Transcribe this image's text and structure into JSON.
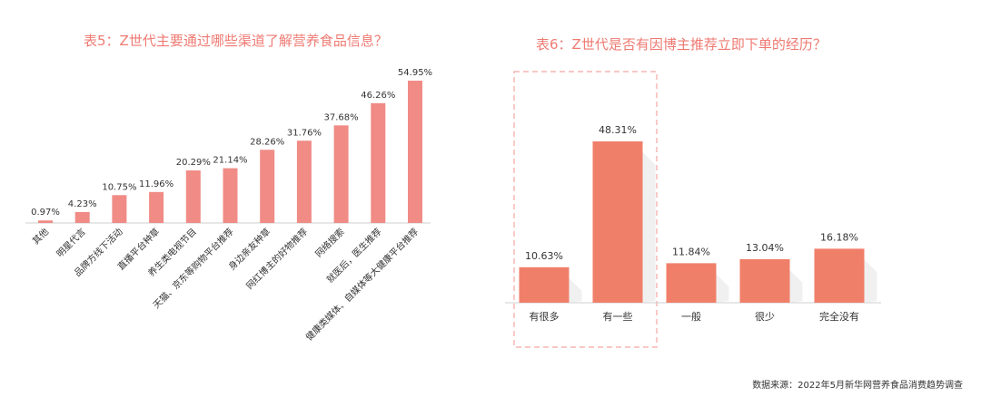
{
  "chart_data": [
    {
      "type": "bar",
      "title": "表5：Z世代主要通过哪些渠道了解营养食品信息？",
      "categories": [
        "其他",
        "明星代言",
        "品牌方线下活动",
        "直播平台种草",
        "养生类电视节目",
        "天猫、京东等购物平台推荐",
        "身边亲友种草",
        "网红博主的好物推荐",
        "网络搜索",
        "就医后，医生推荐",
        "健康类媒体、自媒体等大健康平台推荐"
      ],
      "values": [
        0.97,
        4.23,
        10.75,
        11.96,
        20.29,
        21.14,
        28.26,
        31.76,
        37.68,
        46.26,
        54.95
      ],
      "value_labels": [
        "0.97%",
        "4.23%",
        "10.75%",
        "11.96%",
        "20.29%",
        "21.14%",
        "28.26%",
        "31.76%",
        "37.68%",
        "46.26%",
        "54.95%"
      ],
      "ylim": [
        0,
        60
      ],
      "grid": false,
      "color": "#f08b86"
    },
    {
      "type": "bar",
      "title": "表6：Z世代是否有因博主推荐立即下单的经历？",
      "categories": [
        "有很多",
        "有一些",
        "一般",
        "很少",
        "完全没有"
      ],
      "values": [
        10.63,
        48.31,
        11.84,
        13.04,
        16.18
      ],
      "value_labels": [
        "10.63%",
        "48.31%",
        "11.84%",
        "13.04%",
        "16.18%"
      ],
      "ylim": [
        0,
        55
      ],
      "grid": false,
      "color": "#f07f6a",
      "highlight": [
        "有很多",
        "有一些"
      ],
      "highlight_color": "#f2a6a2"
    }
  ],
  "source": "数据来源：2022年5月新华网营养食品消费趋势调查"
}
